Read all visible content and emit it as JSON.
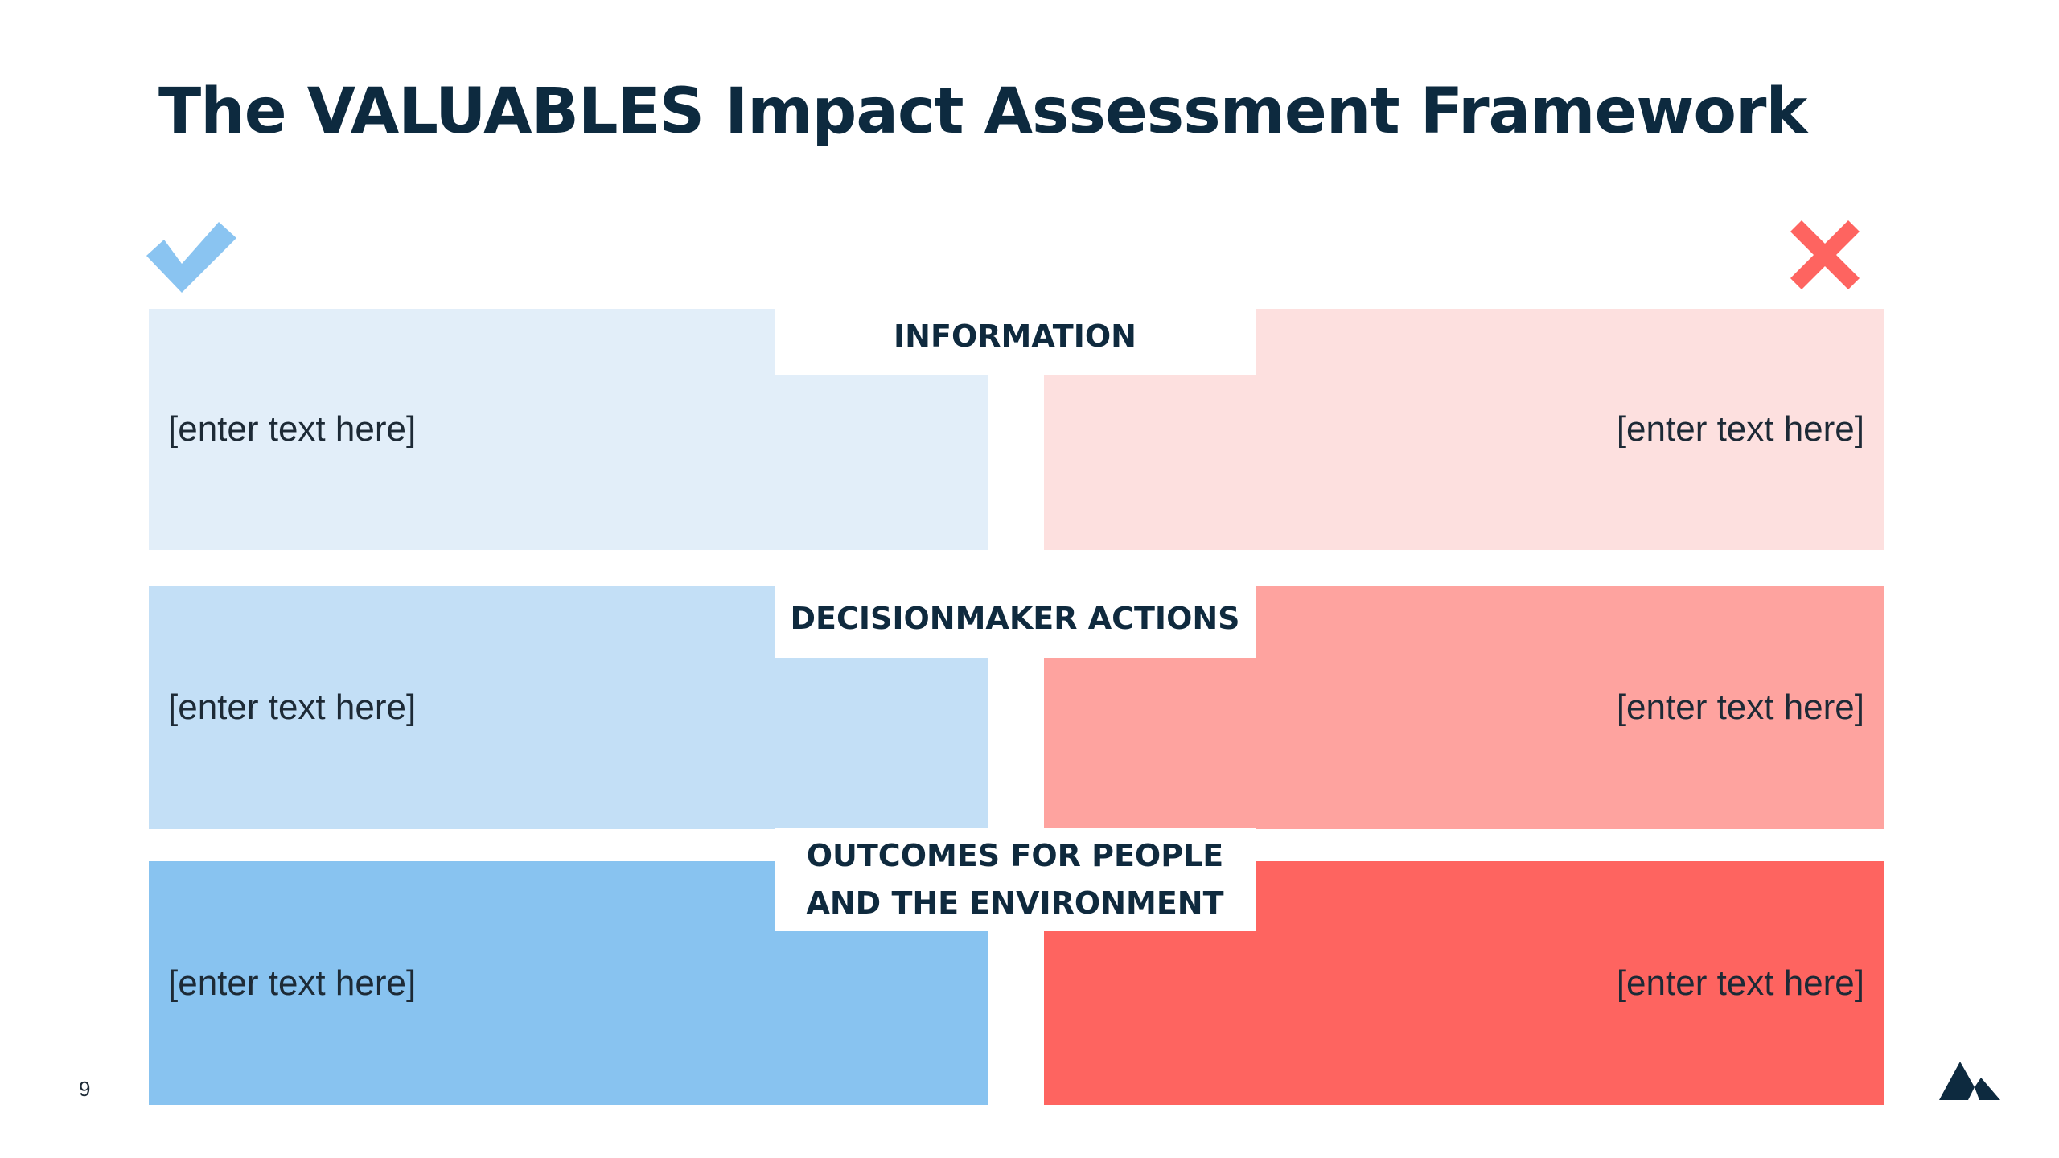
{
  "slide": {
    "title": "The VALUABLES Impact Assessment Framework",
    "page_number": "9"
  },
  "icons": {
    "positive": "check-icon",
    "negative": "cross-icon",
    "brand": "mountain-logo-icon"
  },
  "colors": {
    "title": "#0d2a3f",
    "positive_light": "#e2eef9",
    "positive_mid": "#c3dff6",
    "positive_strong": "#88c3f0",
    "negative_light": "#fde0df",
    "negative_mid": "#fea39f",
    "negative_strong": "#fe6460",
    "check": "#8ac4f1",
    "cross": "#fe6460"
  },
  "rows": [
    {
      "label": "INFORMATION",
      "left_text": "[enter text here]",
      "right_text": "[enter text here]"
    },
    {
      "label": "DECISIONMAKER ACTIONS",
      "left_text": "[enter text here]",
      "right_text": "[enter text here]"
    },
    {
      "label": "OUTCOMES FOR PEOPLE\nAND THE ENVIRONMENT",
      "left_text": "[enter text here]",
      "right_text": "[enter text here]"
    }
  ]
}
